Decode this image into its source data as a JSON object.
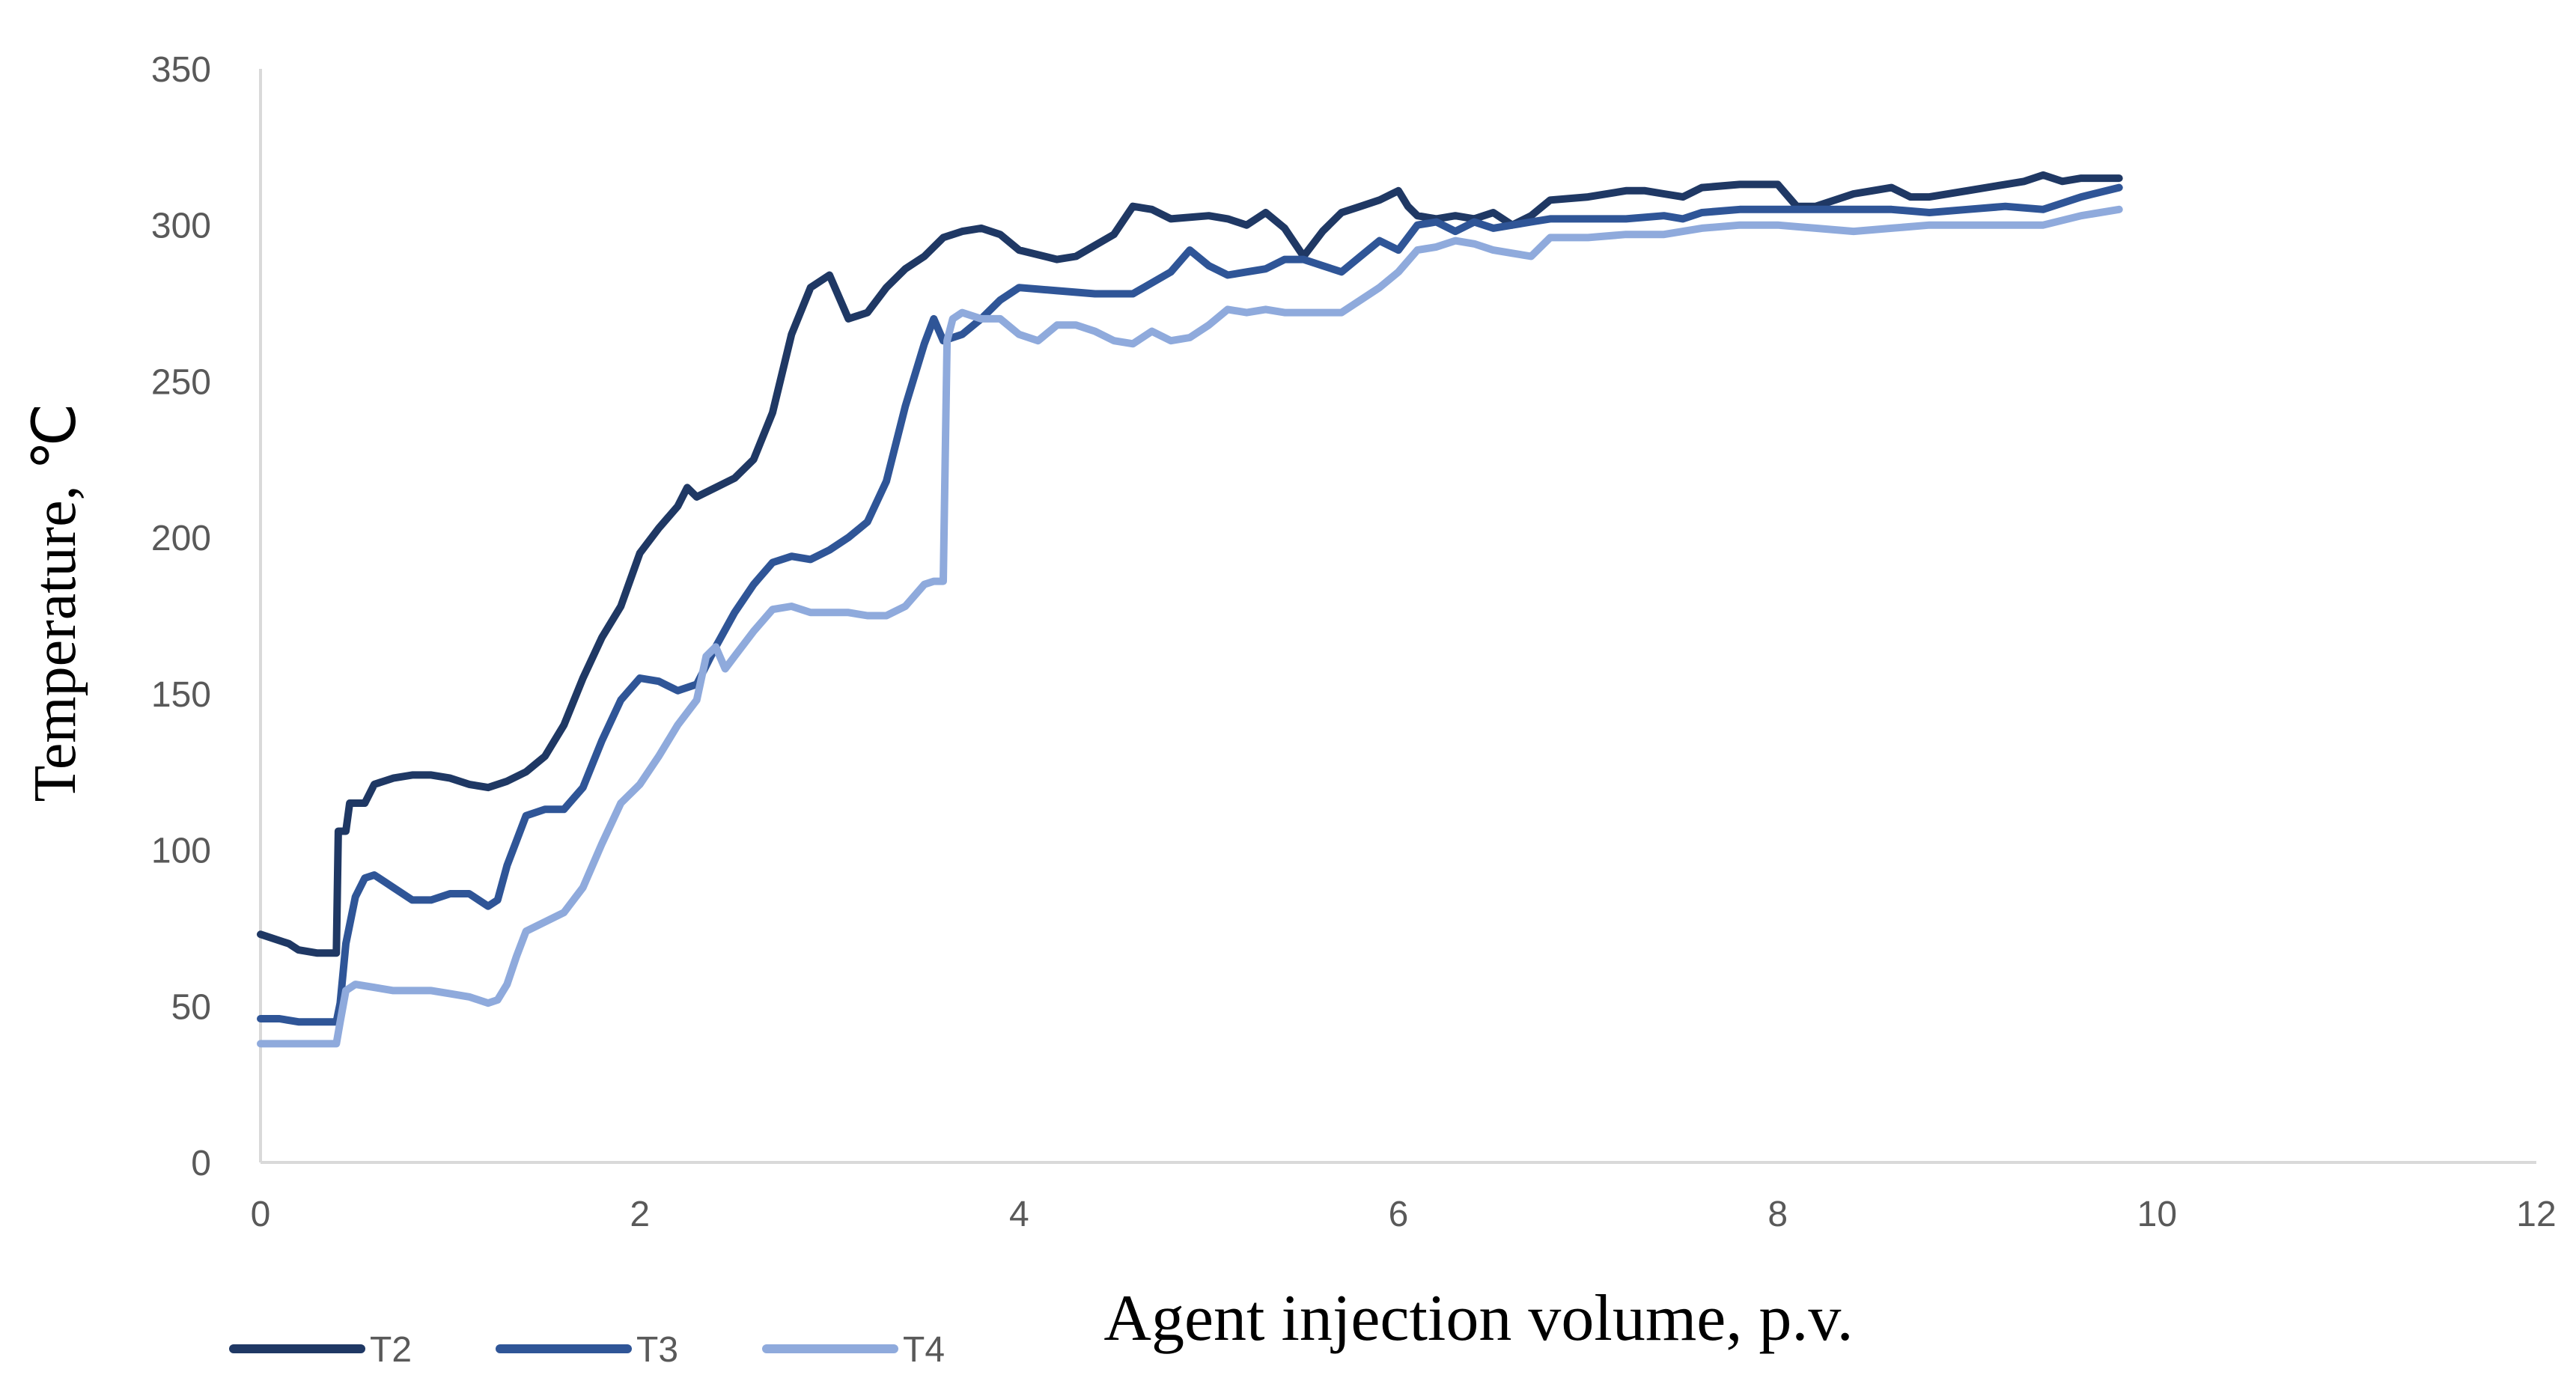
{
  "chart_data": {
    "type": "line",
    "title": "",
    "xlabel": "Agent injection volume, p.v.",
    "ylabel": "Temperature, ℃",
    "xlim": [
      0,
      12
    ],
    "ylim": [
      0,
      350
    ],
    "x_ticks": [
      0,
      2,
      4,
      6,
      8,
      10,
      12
    ],
    "y_ticks": [
      0,
      50,
      100,
      150,
      200,
      250,
      300,
      350
    ],
    "grid": false,
    "legend_position": "bottom-left",
    "series": [
      {
        "name": "T2",
        "color": "#1f3864",
        "points": [
          [
            0,
            73
          ],
          [
            0.15,
            70
          ],
          [
            0.2,
            68
          ],
          [
            0.3,
            67
          ],
          [
            0.4,
            67
          ],
          [
            0.41,
            106
          ],
          [
            0.45,
            106
          ],
          [
            0.47,
            115
          ],
          [
            0.55,
            115
          ],
          [
            0.6,
            121
          ],
          [
            0.7,
            123
          ],
          [
            0.8,
            124
          ],
          [
            0.9,
            124
          ],
          [
            1.0,
            123
          ],
          [
            1.1,
            121
          ],
          [
            1.2,
            120
          ],
          [
            1.3,
            122
          ],
          [
            1.4,
            125
          ],
          [
            1.5,
            130
          ],
          [
            1.6,
            140
          ],
          [
            1.7,
            155
          ],
          [
            1.8,
            168
          ],
          [
            1.9,
            178
          ],
          [
            2.0,
            195
          ],
          [
            2.1,
            203
          ],
          [
            2.2,
            210
          ],
          [
            2.25,
            216
          ],
          [
            2.3,
            213
          ],
          [
            2.4,
            216
          ],
          [
            2.5,
            219
          ],
          [
            2.6,
            225
          ],
          [
            2.7,
            240
          ],
          [
            2.8,
            265
          ],
          [
            2.9,
            280
          ],
          [
            3.0,
            284
          ],
          [
            3.1,
            270
          ],
          [
            3.2,
            272
          ],
          [
            3.3,
            280
          ],
          [
            3.4,
            286
          ],
          [
            3.5,
            290
          ],
          [
            3.6,
            296
          ],
          [
            3.7,
            298
          ],
          [
            3.8,
            299
          ],
          [
            3.9,
            297
          ],
          [
            4.0,
            292
          ],
          [
            4.2,
            289
          ],
          [
            4.3,
            290
          ],
          [
            4.5,
            297
          ],
          [
            4.6,
            306
          ],
          [
            4.7,
            305
          ],
          [
            4.8,
            302
          ],
          [
            5.0,
            303
          ],
          [
            5.1,
            302
          ],
          [
            5.2,
            300
          ],
          [
            5.3,
            304
          ],
          [
            5.4,
            299
          ],
          [
            5.5,
            290
          ],
          [
            5.6,
            298
          ],
          [
            5.7,
            304
          ],
          [
            5.8,
            306
          ],
          [
            5.9,
            308
          ],
          [
            6.0,
            311
          ],
          [
            6.05,
            306
          ],
          [
            6.1,
            303
          ],
          [
            6.2,
            302
          ],
          [
            6.3,
            303
          ],
          [
            6.4,
            302
          ],
          [
            6.5,
            304
          ],
          [
            6.6,
            300
          ],
          [
            6.7,
            303
          ],
          [
            6.8,
            308
          ],
          [
            7.0,
            309
          ],
          [
            7.2,
            311
          ],
          [
            7.3,
            311
          ],
          [
            7.4,
            310
          ],
          [
            7.5,
            309
          ],
          [
            7.6,
            312
          ],
          [
            7.8,
            313
          ],
          [
            8.0,
            313
          ],
          [
            8.1,
            306
          ],
          [
            8.2,
            306
          ],
          [
            8.4,
            310
          ],
          [
            8.5,
            311
          ],
          [
            8.6,
            312
          ],
          [
            8.7,
            309
          ],
          [
            8.8,
            309
          ],
          [
            9.0,
            311
          ],
          [
            9.2,
            313
          ],
          [
            9.3,
            314
          ],
          [
            9.4,
            316
          ],
          [
            9.5,
            314
          ],
          [
            9.6,
            315
          ],
          [
            9.7,
            315
          ],
          [
            9.8,
            315
          ]
        ]
      },
      {
        "name": "T3",
        "color": "#2f5597",
        "points": [
          [
            0,
            46
          ],
          [
            0.1,
            46
          ],
          [
            0.2,
            45
          ],
          [
            0.3,
            45
          ],
          [
            0.4,
            45
          ],
          [
            0.42,
            51
          ],
          [
            0.45,
            70
          ],
          [
            0.5,
            85
          ],
          [
            0.55,
            91
          ],
          [
            0.6,
            92
          ],
          [
            0.65,
            90
          ],
          [
            0.7,
            88
          ],
          [
            0.8,
            84
          ],
          [
            0.9,
            84
          ],
          [
            1.0,
            86
          ],
          [
            1.1,
            86
          ],
          [
            1.2,
            82
          ],
          [
            1.25,
            84
          ],
          [
            1.3,
            95
          ],
          [
            1.4,
            111
          ],
          [
            1.5,
            113
          ],
          [
            1.6,
            113
          ],
          [
            1.7,
            120
          ],
          [
            1.8,
            135
          ],
          [
            1.9,
            148
          ],
          [
            2.0,
            155
          ],
          [
            2.1,
            154
          ],
          [
            2.2,
            151
          ],
          [
            2.3,
            153
          ],
          [
            2.4,
            165
          ],
          [
            2.5,
            176
          ],
          [
            2.6,
            185
          ],
          [
            2.7,
            192
          ],
          [
            2.8,
            194
          ],
          [
            2.9,
            193
          ],
          [
            3.0,
            196
          ],
          [
            3.1,
            200
          ],
          [
            3.2,
            205
          ],
          [
            3.3,
            218
          ],
          [
            3.4,
            242
          ],
          [
            3.5,
            262
          ],
          [
            3.55,
            270
          ],
          [
            3.6,
            263
          ],
          [
            3.7,
            265
          ],
          [
            3.8,
            270
          ],
          [
            3.9,
            276
          ],
          [
            4.0,
            280
          ],
          [
            4.2,
            279
          ],
          [
            4.4,
            278
          ],
          [
            4.6,
            278
          ],
          [
            4.8,
            285
          ],
          [
            4.9,
            292
          ],
          [
            5.0,
            287
          ],
          [
            5.1,
            284
          ],
          [
            5.2,
            285
          ],
          [
            5.3,
            286
          ],
          [
            5.4,
            289
          ],
          [
            5.5,
            289
          ],
          [
            5.6,
            287
          ],
          [
            5.7,
            285
          ],
          [
            5.8,
            290
          ],
          [
            5.9,
            295
          ],
          [
            6.0,
            292
          ],
          [
            6.1,
            300
          ],
          [
            6.2,
            301
          ],
          [
            6.3,
            298
          ],
          [
            6.4,
            301
          ],
          [
            6.5,
            299
          ],
          [
            6.6,
            300
          ],
          [
            6.7,
            301
          ],
          [
            6.8,
            302
          ],
          [
            7.0,
            302
          ],
          [
            7.2,
            302
          ],
          [
            7.4,
            303
          ],
          [
            7.5,
            302
          ],
          [
            7.6,
            304
          ],
          [
            7.8,
            305
          ],
          [
            8.0,
            305
          ],
          [
            8.2,
            305
          ],
          [
            8.4,
            305
          ],
          [
            8.6,
            305
          ],
          [
            8.8,
            304
          ],
          [
            9.0,
            305
          ],
          [
            9.2,
            306
          ],
          [
            9.4,
            305
          ],
          [
            9.6,
            309
          ],
          [
            9.8,
            312
          ]
        ]
      },
      {
        "name": "T4",
        "color": "#8faadc",
        "points": [
          [
            0,
            38
          ],
          [
            0.1,
            38
          ],
          [
            0.2,
            38
          ],
          [
            0.3,
            38
          ],
          [
            0.4,
            38
          ],
          [
            0.42,
            45
          ],
          [
            0.45,
            55
          ],
          [
            0.5,
            57
          ],
          [
            0.6,
            56
          ],
          [
            0.7,
            55
          ],
          [
            0.8,
            55
          ],
          [
            0.9,
            55
          ],
          [
            1.0,
            54
          ],
          [
            1.1,
            53
          ],
          [
            1.2,
            51
          ],
          [
            1.25,
            52
          ],
          [
            1.3,
            57
          ],
          [
            1.35,
            66
          ],
          [
            1.4,
            74
          ],
          [
            1.5,
            77
          ],
          [
            1.6,
            80
          ],
          [
            1.7,
            88
          ],
          [
            1.8,
            102
          ],
          [
            1.9,
            115
          ],
          [
            2.0,
            121
          ],
          [
            2.1,
            130
          ],
          [
            2.2,
            140
          ],
          [
            2.3,
            148
          ],
          [
            2.35,
            162
          ],
          [
            2.4,
            165
          ],
          [
            2.45,
            158
          ],
          [
            2.5,
            162
          ],
          [
            2.6,
            170
          ],
          [
            2.7,
            177
          ],
          [
            2.8,
            178
          ],
          [
            2.9,
            176
          ],
          [
            3.0,
            176
          ],
          [
            3.1,
            176
          ],
          [
            3.2,
            175
          ],
          [
            3.3,
            175
          ],
          [
            3.4,
            178
          ],
          [
            3.5,
            185
          ],
          [
            3.55,
            186
          ],
          [
            3.6,
            186
          ],
          [
            3.62,
            263
          ],
          [
            3.65,
            270
          ],
          [
            3.7,
            272
          ],
          [
            3.8,
            270
          ],
          [
            3.9,
            270
          ],
          [
            4.0,
            265
          ],
          [
            4.1,
            263
          ],
          [
            4.2,
            268
          ],
          [
            4.3,
            268
          ],
          [
            4.4,
            266
          ],
          [
            4.5,
            263
          ],
          [
            4.6,
            262
          ],
          [
            4.7,
            266
          ],
          [
            4.8,
            263
          ],
          [
            4.9,
            264
          ],
          [
            5.0,
            268
          ],
          [
            5.1,
            273
          ],
          [
            5.2,
            272
          ],
          [
            5.3,
            273
          ],
          [
            5.4,
            272
          ],
          [
            5.5,
            272
          ],
          [
            5.6,
            272
          ],
          [
            5.7,
            272
          ],
          [
            5.8,
            276
          ],
          [
            5.9,
            280
          ],
          [
            6.0,
            285
          ],
          [
            6.1,
            292
          ],
          [
            6.2,
            293
          ],
          [
            6.3,
            295
          ],
          [
            6.4,
            294
          ],
          [
            6.5,
            292
          ],
          [
            6.6,
            291
          ],
          [
            6.7,
            290
          ],
          [
            6.8,
            296
          ],
          [
            7.0,
            296
          ],
          [
            7.2,
            297
          ],
          [
            7.4,
            297
          ],
          [
            7.6,
            299
          ],
          [
            7.8,
            300
          ],
          [
            8.0,
            300
          ],
          [
            8.2,
            299
          ],
          [
            8.4,
            298
          ],
          [
            8.6,
            299
          ],
          [
            8.8,
            300
          ],
          [
            9.0,
            300
          ],
          [
            9.2,
            300
          ],
          [
            9.4,
            300
          ],
          [
            9.6,
            303
          ],
          [
            9.8,
            305
          ]
        ]
      }
    ]
  }
}
